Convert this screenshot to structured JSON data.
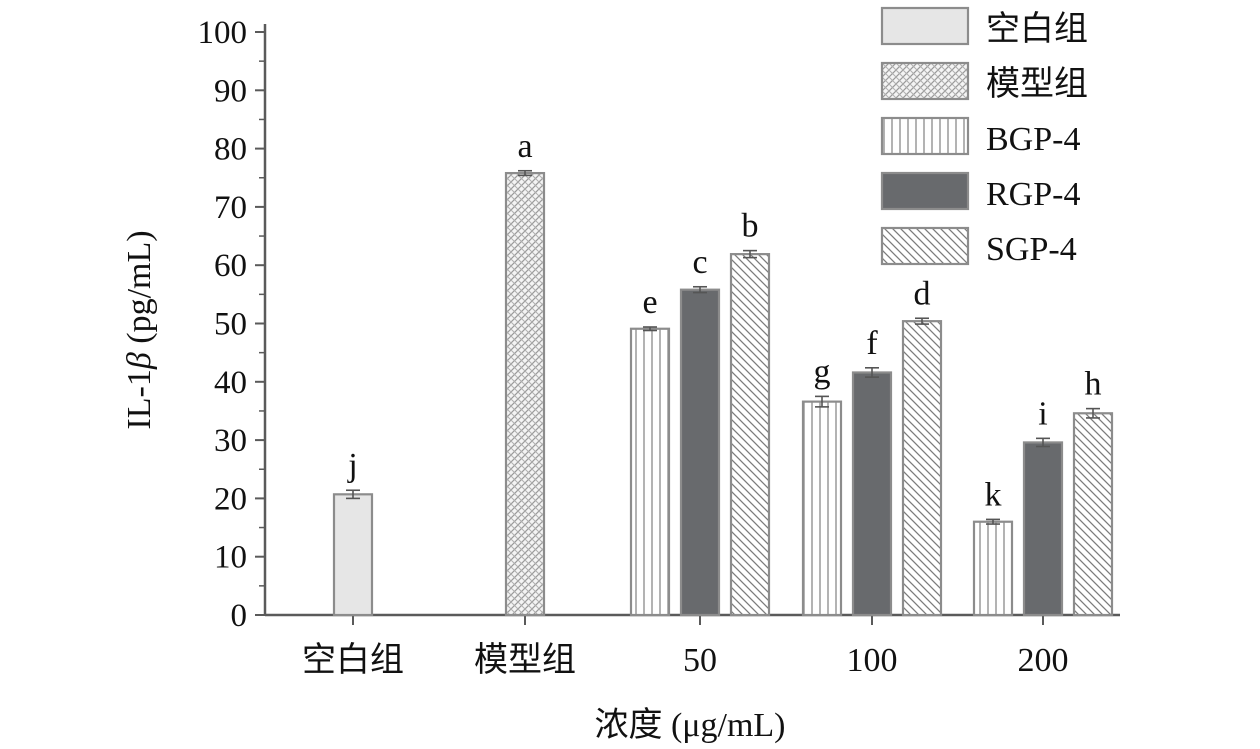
{
  "chart_data": {
    "type": "bar",
    "ylabel": "IL-1β (pg/mL)",
    "ylabel_main": "IL-1",
    "ylabel_beta": "β",
    "ylabel_unit": " (pg/mL)",
    "xlabel": "浓度 (μg/mL)",
    "ylim": [
      0,
      100
    ],
    "yticks": [
      0,
      10,
      20,
      30,
      40,
      50,
      60,
      70,
      80,
      90,
      100
    ],
    "categories": [
      "空白组",
      "模型组",
      "50",
      "100",
      "200"
    ],
    "legend_position": "top-right",
    "series": [
      {
        "name": "空白组",
        "pattern": "light-fill",
        "values": [
          20.7,
          null,
          null,
          null,
          null
        ],
        "errors": [
          0.7,
          null,
          null,
          null,
          null
        ],
        "letters": [
          "j",
          null,
          null,
          null,
          null
        ]
      },
      {
        "name": "模型组",
        "pattern": "crosshatch",
        "values": [
          null,
          75.8,
          null,
          null,
          null
        ],
        "errors": [
          null,
          0.4,
          null,
          null,
          null
        ],
        "letters": [
          null,
          "a",
          null,
          null,
          null
        ]
      },
      {
        "name": "BGP-4",
        "pattern": "vertical-stripes",
        "values": [
          null,
          null,
          49.1,
          36.6,
          16.0
        ],
        "errors": [
          null,
          null,
          0.3,
          0.9,
          0.4
        ],
        "letters": [
          null,
          null,
          "e",
          "g",
          "k"
        ]
      },
      {
        "name": "RGP-4",
        "pattern": "solid-dark",
        "values": [
          null,
          null,
          55.8,
          41.6,
          29.6
        ],
        "errors": [
          null,
          null,
          0.5,
          0.8,
          0.7
        ],
        "letters": [
          null,
          null,
          "c",
          "f",
          "i"
        ]
      },
      {
        "name": "SGP-4",
        "pattern": "diagonal-stripes",
        "values": [
          null,
          null,
          61.9,
          50.4,
          34.6
        ],
        "errors": [
          null,
          null,
          0.6,
          0.5,
          0.8
        ],
        "letters": [
          null,
          null,
          "b",
          "d",
          "h"
        ]
      }
    ],
    "colors": {
      "light_fill": "#e6e6e6",
      "bar_outline": "#8c8c8c",
      "dark_fill": "#686a6d",
      "axis": "#5a5a5a",
      "text": "#111111"
    }
  }
}
